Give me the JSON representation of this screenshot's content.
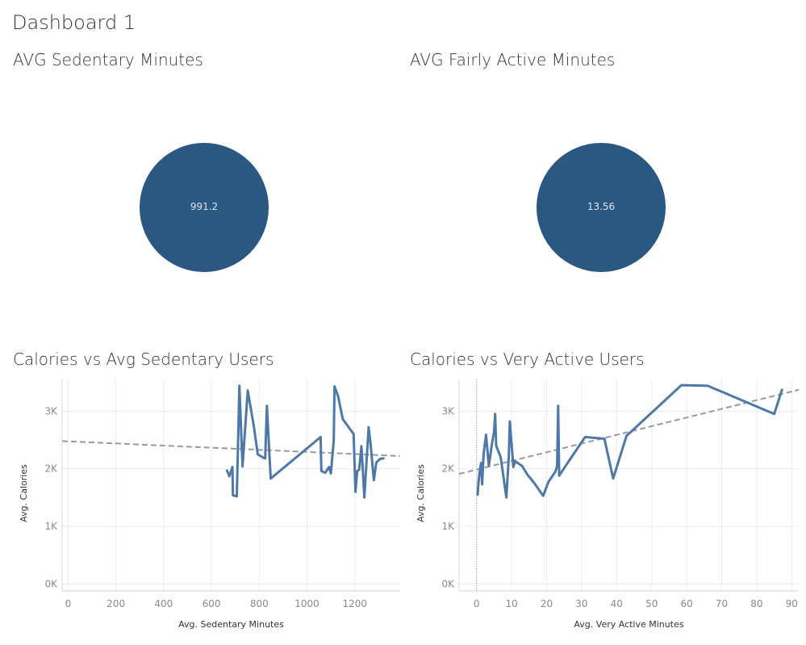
{
  "dashboard": {
    "title": "Dashboard 1"
  },
  "panels": {
    "sedentary_avg": {
      "title": "AVG Sedentary Minutes",
      "value": "991.2",
      "color": "#2b5783"
    },
    "fairly_avg": {
      "title": "AVG Fairly Active Minutes",
      "value": "13.56",
      "color": "#2b5783"
    },
    "sedentary_chart": {
      "title": "Calories vs Avg Sedentary Users"
    },
    "very_active_chart": {
      "title": "Calories vs Very Active Users"
    }
  },
  "chart_data": [
    {
      "type": "line",
      "title": "Calories vs Avg Sedentary Users",
      "xlabel": "Avg. Sedentary Minutes",
      "ylabel": "Avg. Calories",
      "xlim": [
        -25,
        1390
      ],
      "ylim": [
        -120,
        3550
      ],
      "xticks": [
        0,
        200,
        400,
        600,
        800,
        1000,
        1200
      ],
      "xtick_labels": [
        "0",
        "200",
        "400",
        "600",
        "800",
        "1000",
        "1200"
      ],
      "yticks": [
        0,
        1000,
        2000,
        3000
      ],
      "ytick_labels": [
        "0K",
        "1K",
        "2K",
        "3K"
      ],
      "line_color": "#4e79a7",
      "trend_color": "#999999",
      "grid": true,
      "series": [
        {
          "x": [
            665,
            675,
            688,
            690,
            706,
            717,
            730,
            752,
            778,
            794,
            818,
            825,
            832,
            848,
            1057,
            1060,
            1076,
            1092,
            1100,
            1112,
            1115,
            1130,
            1150,
            1195,
            1203,
            1210,
            1218,
            1228,
            1240,
            1258,
            1266,
            1280,
            1290,
            1306,
            1320
          ],
          "y": [
            1970,
            1870,
            2030,
            1540,
            1520,
            3440,
            2040,
            3360,
            2720,
            2250,
            2190,
            2180,
            3090,
            1830,
            2550,
            1960,
            1930,
            2030,
            1920,
            2500,
            3430,
            3260,
            2860,
            2600,
            1600,
            1960,
            1980,
            2390,
            1500,
            2720,
            2430,
            1800,
            2110,
            2170,
            2180
          ]
        }
      ],
      "trend": {
        "x": [
          -25,
          1390
        ],
        "y": [
          2480,
          2220
        ]
      }
    },
    {
      "type": "line",
      "title": "Calories vs Very Active Users",
      "xlabel": "Avg. Very Active Minutes",
      "ylabel": "Avg. Calories",
      "xlim": [
        -5,
        92
      ],
      "ylim": [
        -120,
        3550
      ],
      "xticks": [
        0,
        10,
        20,
        30,
        40,
        50,
        60,
        70,
        80,
        90
      ],
      "xtick_labels": [
        "0",
        "10",
        "20",
        "30",
        "40",
        "50",
        "60",
        "70",
        "80",
        "90"
      ],
      "yticks": [
        0,
        1000,
        2000,
        3000
      ],
      "ytick_labels": [
        "0K",
        "1K",
        "2K",
        "3K"
      ],
      "line_color": "#4e79a7",
      "trend_color": "#999999",
      "grid": true,
      "series": [
        {
          "x": [
            0.3,
            0.6,
            1.0,
            1.3,
            1.6,
            2.0,
            2.7,
            3.5,
            4.3,
            5.0,
            5.3,
            5.6,
            6.9,
            8.5,
            9.2,
            9.5,
            10.5,
            11.0,
            13.0,
            14.5,
            16.5,
            19.0,
            20.5,
            22.5,
            23.0,
            23.3,
            23.6,
            26.0,
            31.0,
            36.5,
            39.0,
            42.8,
            58.5,
            66.0,
            85.0,
            87.2
          ],
          "y": [
            1550,
            1800,
            2000,
            2100,
            1730,
            2250,
            2590,
            2050,
            2400,
            2650,
            2950,
            2400,
            2200,
            1500,
            2200,
            2820,
            2030,
            2130,
            2050,
            1900,
            1750,
            1530,
            1770,
            1950,
            2050,
            3090,
            1880,
            2100,
            2550,
            2520,
            1830,
            2570,
            3450,
            3440,
            2950,
            3370
          ]
        }
      ],
      "trend": {
        "x": [
          -5,
          92
        ],
        "y": [
          1910,
          3370
        ]
      }
    }
  ]
}
